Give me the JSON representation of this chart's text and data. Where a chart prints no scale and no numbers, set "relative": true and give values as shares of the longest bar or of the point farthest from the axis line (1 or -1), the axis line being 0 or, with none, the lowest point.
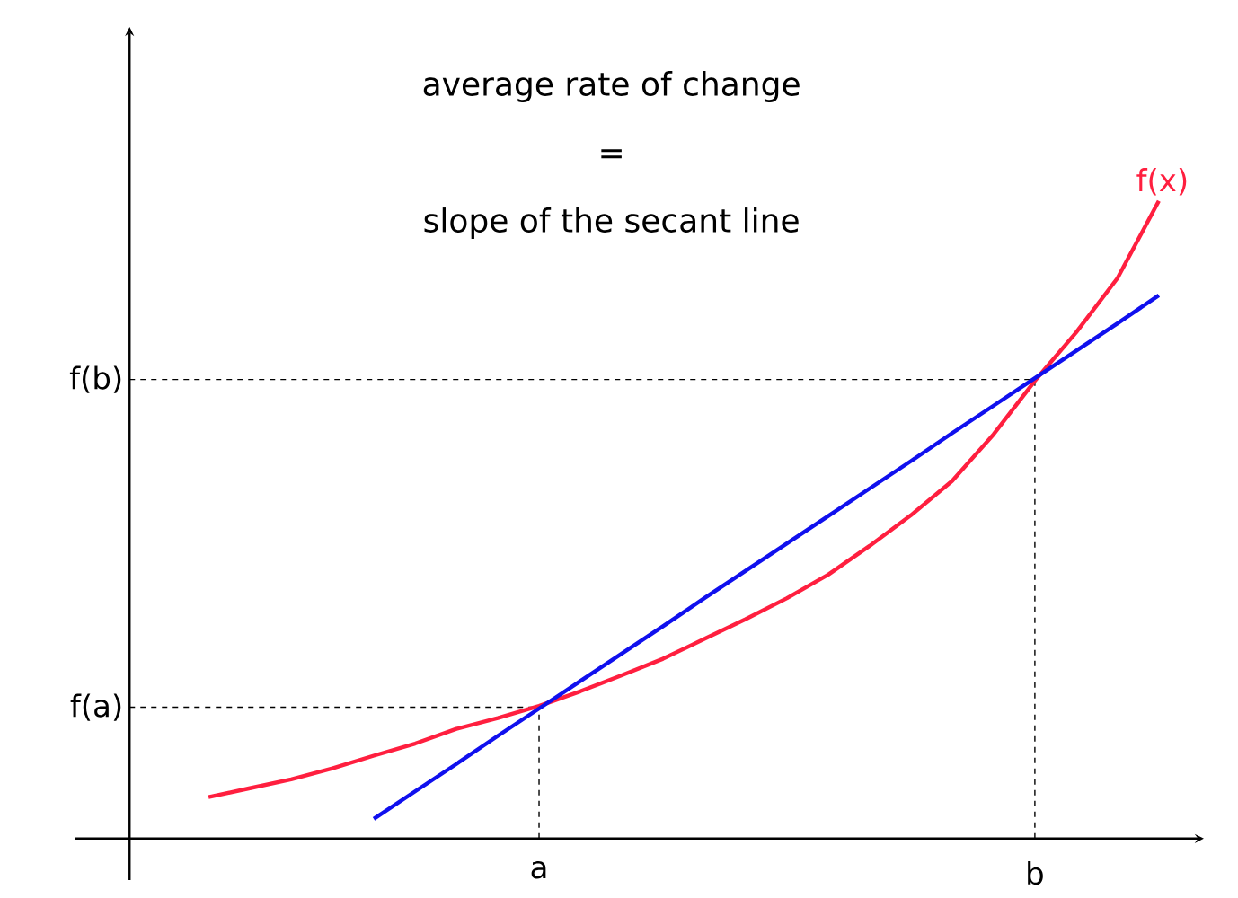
{
  "chart_data": {
    "type": "line",
    "relative": true,
    "annotations": [
      "average rate of change",
      "=",
      "slope of the secant line"
    ],
    "categories": [
      null,
      null,
      null,
      null,
      null,
      null,
      null,
      null,
      "a",
      null,
      null,
      null,
      null,
      null,
      null,
      null,
      null,
      null,
      null,
      null,
      "b",
      null,
      null,
      null,
      null
    ],
    "series": [
      {
        "name": "f(x)",
        "color": "#ff1f3f",
        "values": [
          0.065,
          0.079,
          0.093,
          0.11,
          0.13,
          0.149,
          0.172,
          0.189,
          0.208,
          0.231,
          0.256,
          0.282,
          0.313,
          0.344,
          0.377,
          0.414,
          0.459,
          0.507,
          0.561,
          0.634,
          0.718,
          0.794,
          0.879,
          1.0,
          null
        ]
      },
      {
        "color": "#1010ee",
        "values": [
          null,
          null,
          null,
          null,
          0.031,
          0.074,
          0.117,
          0.161,
          0.204,
          0.247,
          0.29,
          0.333,
          0.377,
          0.42,
          0.463,
          0.506,
          0.549,
          0.592,
          0.636,
          0.679,
          0.722,
          0.765,
          0.808,
          0.852,
          null
        ]
      }
    ],
    "ref_lines": [
      {
        "axis": "y",
        "value": 0.206,
        "label": "f(a)",
        "line_style": "dashed"
      },
      {
        "axis": "y",
        "value": 0.72,
        "label": "f(b)",
        "line_style": "dashed"
      },
      {
        "axis": "x",
        "value": "a",
        "line_style": "dashed"
      },
      {
        "axis": "x",
        "value": "b",
        "line_style": "dashed"
      }
    ]
  }
}
